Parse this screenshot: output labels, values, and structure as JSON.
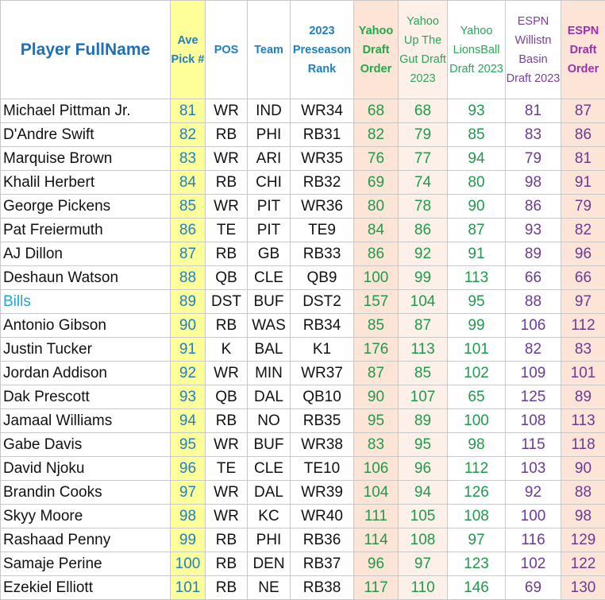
{
  "headers": {
    "name": "Player FullName",
    "ave_pick": "Ave Pick #",
    "pos": "POS",
    "team": "Team",
    "preseason_rank": "2023 Preseason Rank",
    "yahoo_draft_order": "Yahoo Draft Order",
    "yahoo_up_the_gut": "Yahoo Up The Gut Draft 2023",
    "yahoo_lionsball": "Yahoo LionsBall Draft 2023",
    "espn_williston": "ESPN Willistn Basin Draft 2023",
    "espn_draft_order": "ESPN Draft Order"
  },
  "rows": [
    {
      "name": "Michael Pittman Jr.",
      "pick": "81",
      "pos": "WR",
      "team": "IND",
      "rank": "WR34",
      "y1": "68",
      "y2": "68",
      "y3": "93",
      "e1": "81",
      "e2": "87"
    },
    {
      "name": "D'Andre Swift",
      "pick": "82",
      "pos": "RB",
      "team": "PHI",
      "rank": "RB31",
      "y1": "82",
      "y2": "79",
      "y3": "85",
      "e1": "83",
      "e2": "86"
    },
    {
      "name": "Marquise Brown",
      "pick": "83",
      "pos": "WR",
      "team": "ARI",
      "rank": "WR35",
      "y1": "76",
      "y2": "77",
      "y3": "94",
      "e1": "79",
      "e2": "81"
    },
    {
      "name": "Khalil Herbert",
      "pick": "84",
      "pos": "RB",
      "team": "CHI",
      "rank": "RB32",
      "y1": "69",
      "y2": "74",
      "y3": "80",
      "e1": "98",
      "e2": "91"
    },
    {
      "name": "George Pickens",
      "pick": "85",
      "pos": "WR",
      "team": "PIT",
      "rank": "WR36",
      "y1": "80",
      "y2": "78",
      "y3": "90",
      "e1": "86",
      "e2": "79"
    },
    {
      "name": "Pat Freiermuth",
      "pick": "86",
      "pos": "TE",
      "team": "PIT",
      "rank": "TE9",
      "y1": "84",
      "y2": "86",
      "y3": "87",
      "e1": "93",
      "e2": "82"
    },
    {
      "name": "AJ Dillon",
      "pick": "87",
      "pos": "RB",
      "team": "GB",
      "rank": "RB33",
      "y1": "86",
      "y2": "92",
      "y3": "91",
      "e1": "89",
      "e2": "96"
    },
    {
      "name": "Deshaun Watson",
      "pick": "88",
      "pos": "QB",
      "team": "CLE",
      "rank": "QB9",
      "y1": "100",
      "y2": "99",
      "y3": "113",
      "e1": "66",
      "e2": "66"
    },
    {
      "name": "Bills",
      "pick": "89",
      "pos": "DST",
      "team": "BUF",
      "rank": "DST2",
      "y1": "157",
      "y2": "104",
      "y3": "95",
      "e1": "88",
      "e2": "97"
    },
    {
      "name": "Antonio Gibson",
      "pick": "90",
      "pos": "RB",
      "team": "WAS",
      "rank": "RB34",
      "y1": "85",
      "y2": "87",
      "y3": "99",
      "e1": "106",
      "e2": "112"
    },
    {
      "name": "Justin Tucker",
      "pick": "91",
      "pos": "K",
      "team": "BAL",
      "rank": "K1",
      "y1": "176",
      "y2": "113",
      "y3": "101",
      "e1": "82",
      "e2": "83"
    },
    {
      "name": "Jordan Addison",
      "pick": "92",
      "pos": "WR",
      "team": "MIN",
      "rank": "WR37",
      "y1": "87",
      "y2": "85",
      "y3": "102",
      "e1": "109",
      "e2": "101"
    },
    {
      "name": "Dak Prescott",
      "pick": "93",
      "pos": "QB",
      "team": "DAL",
      "rank": "QB10",
      "y1": "90",
      "y2": "107",
      "y3": "65",
      "e1": "125",
      "e2": "89"
    },
    {
      "name": "Jamaal Williams",
      "pick": "94",
      "pos": "RB",
      "team": "NO",
      "rank": "RB35",
      "y1": "95",
      "y2": "89",
      "y3": "100",
      "e1": "108",
      "e2": "113"
    },
    {
      "name": "Gabe Davis",
      "pick": "95",
      "pos": "WR",
      "team": "BUF",
      "rank": "WR38",
      "y1": "83",
      "y2": "95",
      "y3": "98",
      "e1": "115",
      "e2": "118"
    },
    {
      "name": "David Njoku",
      "pick": "96",
      "pos": "TE",
      "team": "CLE",
      "rank": "TE10",
      "y1": "106",
      "y2": "96",
      "y3": "112",
      "e1": "103",
      "e2": "90"
    },
    {
      "name": "Brandin Cooks",
      "pick": "97",
      "pos": "WR",
      "team": "DAL",
      "rank": "WR39",
      "y1": "104",
      "y2": "94",
      "y3": "126",
      "e1": "92",
      "e2": "88"
    },
    {
      "name": "Skyy Moore",
      "pick": "98",
      "pos": "WR",
      "team": "KC",
      "rank": "WR40",
      "y1": "111",
      "y2": "105",
      "y3": "108",
      "e1": "100",
      "e2": "98"
    },
    {
      "name": "Rashaad Penny",
      "pick": "99",
      "pos": "RB",
      "team": "PHI",
      "rank": "RB36",
      "y1": "114",
      "y2": "108",
      "y3": "97",
      "e1": "116",
      "e2": "129"
    },
    {
      "name": "Samaje Perine",
      "pick": "100",
      "pos": "RB",
      "team": "DEN",
      "rank": "RB37",
      "y1": "96",
      "y2": "97",
      "y3": "123",
      "e1": "102",
      "e2": "122"
    },
    {
      "name": "Ezekiel Elliott",
      "pick": "101",
      "pos": "RB",
      "team": "NE",
      "rank": "RB38",
      "y1": "117",
      "y2": "110",
      "y3": "146",
      "e1": "69",
      "e2": "130"
    }
  ]
}
